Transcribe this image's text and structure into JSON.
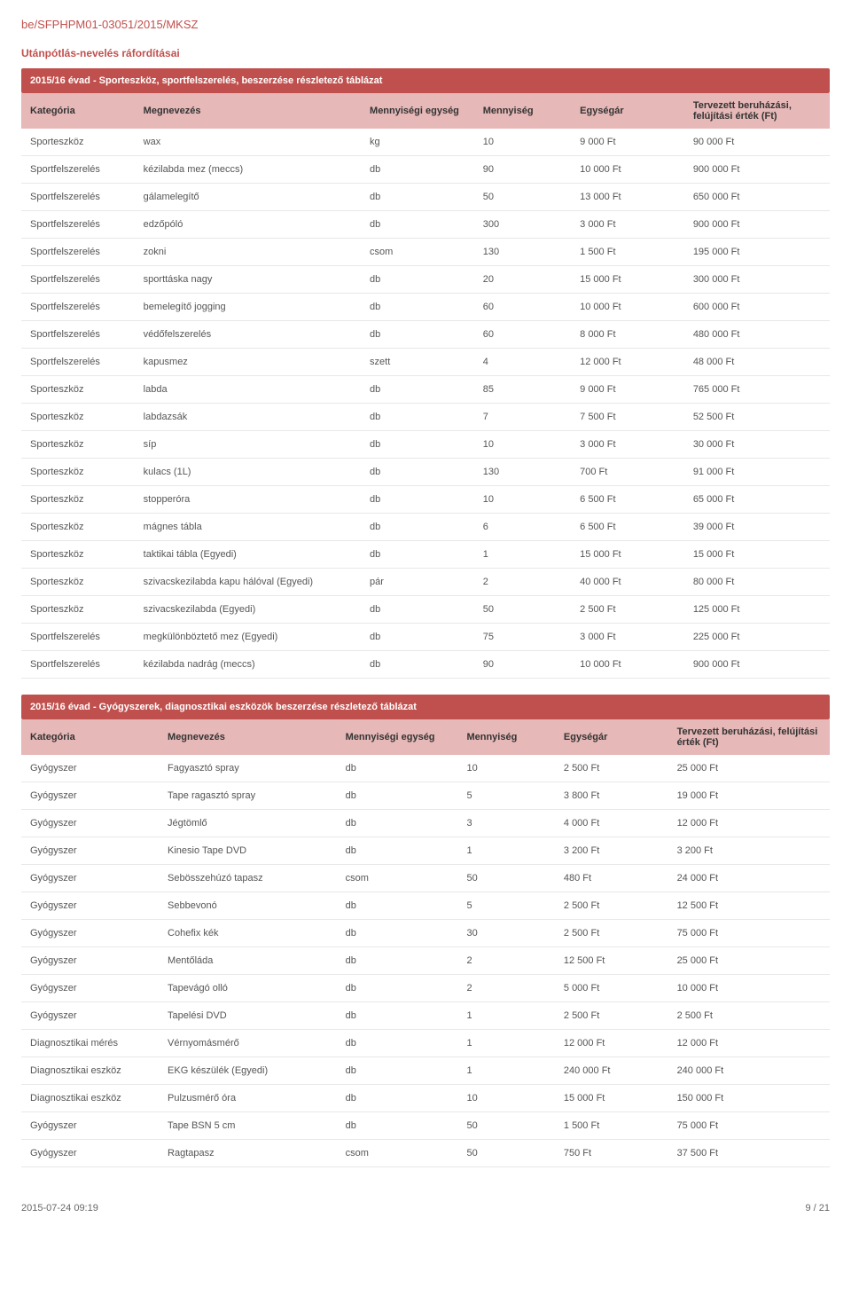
{
  "doc_id": "be/SFPHPM01-03051/2015/MKSZ",
  "section_title": "Utánpótlás-nevelés ráfordításai",
  "table1": {
    "band": "2015/16 évad - Sporteszköz, sportfelszerelés, beszerzése részletező táblázat",
    "headers": [
      "Kategória",
      "Megnevezés",
      "Mennyiségi egység",
      "Mennyiség",
      "Egységár",
      "Tervezett beruházási, felújítási érték (Ft)"
    ],
    "col_widths": [
      "14%",
      "28%",
      "14%",
      "12%",
      "14%",
      "18%"
    ],
    "rows": [
      [
        "Sporteszköz",
        "wax",
        "kg",
        "10",
        "9 000 Ft",
        "90 000 Ft"
      ],
      [
        "Sportfelszerelés",
        "kézilabda mez (meccs)",
        "db",
        "90",
        "10 000 Ft",
        "900 000 Ft"
      ],
      [
        "Sportfelszerelés",
        "gálamelegítő",
        "db",
        "50",
        "13 000 Ft",
        "650 000 Ft"
      ],
      [
        "Sportfelszerelés",
        "edzőpóló",
        "db",
        "300",
        "3 000 Ft",
        "900 000 Ft"
      ],
      [
        "Sportfelszerelés",
        "zokni",
        "csom",
        "130",
        "1 500 Ft",
        "195 000 Ft"
      ],
      [
        "Sportfelszerelés",
        "sporttáska nagy",
        "db",
        "20",
        "15 000 Ft",
        "300 000 Ft"
      ],
      [
        "Sportfelszerelés",
        "bemelegítő jogging",
        "db",
        "60",
        "10 000 Ft",
        "600 000 Ft"
      ],
      [
        "Sportfelszerelés",
        "védőfelszerelés",
        "db",
        "60",
        "8 000 Ft",
        "480 000 Ft"
      ],
      [
        "Sportfelszerelés",
        "kapusmez",
        "szett",
        "4",
        "12 000 Ft",
        "48 000 Ft"
      ],
      [
        "Sporteszköz",
        "labda",
        "db",
        "85",
        "9 000 Ft",
        "765 000 Ft"
      ],
      [
        "Sporteszköz",
        "labdazsák",
        "db",
        "7",
        "7 500 Ft",
        "52 500 Ft"
      ],
      [
        "Sporteszköz",
        "síp",
        "db",
        "10",
        "3 000 Ft",
        "30 000 Ft"
      ],
      [
        "Sporteszköz",
        "kulacs (1L)",
        "db",
        "130",
        "700 Ft",
        "91 000 Ft"
      ],
      [
        "Sporteszköz",
        "stopperóra",
        "db",
        "10",
        "6 500 Ft",
        "65 000 Ft"
      ],
      [
        "Sporteszköz",
        "mágnes tábla",
        "db",
        "6",
        "6 500 Ft",
        "39 000 Ft"
      ],
      [
        "Sporteszköz",
        "taktikai tábla (Egyedi)",
        "db",
        "1",
        "15 000 Ft",
        "15 000 Ft"
      ],
      [
        "Sporteszköz",
        "szivacskezilabda kapu hálóval (Egyedi)",
        "pár",
        "2",
        "40 000 Ft",
        "80 000 Ft"
      ],
      [
        "Sporteszköz",
        "szivacskezilabda (Egyedi)",
        "db",
        "50",
        "2 500 Ft",
        "125 000 Ft"
      ],
      [
        "Sportfelszerelés",
        "megkülönböztető mez (Egyedi)",
        "db",
        "75",
        "3 000 Ft",
        "225 000 Ft"
      ],
      [
        "Sportfelszerelés",
        "kézilabda nadrág (meccs)",
        "db",
        "90",
        "10 000 Ft",
        "900 000 Ft"
      ]
    ]
  },
  "table2": {
    "band": "2015/16 évad - Gyógyszerek, diagnosztikai eszközök beszerzése részletező táblázat",
    "headers": [
      "Kategória",
      "Megnevezés",
      "Mennyiségi egység",
      "Mennyiség",
      "Egységár",
      "Tervezett beruházási, felújítási érték (Ft)"
    ],
    "col_widths": [
      "17%",
      "22%",
      "15%",
      "12%",
      "14%",
      "20%"
    ],
    "rows": [
      [
        "Gyógyszer",
        "Fagyasztó spray",
        "db",
        "10",
        "2 500 Ft",
        "25 000 Ft"
      ],
      [
        "Gyógyszer",
        "Tape ragasztó spray",
        "db",
        "5",
        "3 800 Ft",
        "19 000 Ft"
      ],
      [
        "Gyógyszer",
        "Jégtömlő",
        "db",
        "3",
        "4 000 Ft",
        "12 000 Ft"
      ],
      [
        "Gyógyszer",
        "Kinesio Tape DVD",
        "db",
        "1",
        "3 200 Ft",
        "3 200 Ft"
      ],
      [
        "Gyógyszer",
        "Sebösszehúzó tapasz",
        "csom",
        "50",
        "480 Ft",
        "24 000 Ft"
      ],
      [
        "Gyógyszer",
        "Sebbevonó",
        "db",
        "5",
        "2 500 Ft",
        "12 500 Ft"
      ],
      [
        "Gyógyszer",
        "Cohefix kék",
        "db",
        "30",
        "2 500 Ft",
        "75 000 Ft"
      ],
      [
        "Gyógyszer",
        "Mentőláda",
        "db",
        "2",
        "12 500 Ft",
        "25 000 Ft"
      ],
      [
        "Gyógyszer",
        "Tapevágó olló",
        "db",
        "2",
        "5 000 Ft",
        "10 000 Ft"
      ],
      [
        "Gyógyszer",
        "Tapelési DVD",
        "db",
        "1",
        "2 500 Ft",
        "2 500 Ft"
      ],
      [
        "Diagnosztikai mérés",
        "Vérnyomásmérő",
        "db",
        "1",
        "12 000 Ft",
        "12 000 Ft"
      ],
      [
        "Diagnosztikai eszköz",
        "EKG készülék (Egyedi)",
        "db",
        "1",
        "240 000 Ft",
        "240 000 Ft"
      ],
      [
        "Diagnosztikai eszköz",
        "Pulzusmérő óra",
        "db",
        "10",
        "15 000 Ft",
        "150 000 Ft"
      ],
      [
        "Gyógyszer",
        "Tape BSN 5 cm",
        "db",
        "50",
        "1 500 Ft",
        "75 000 Ft"
      ],
      [
        "Gyógyszer",
        "Ragtapasz",
        "csom",
        "50",
        "750 Ft",
        "37 500 Ft"
      ]
    ]
  },
  "footer": {
    "left": "2015-07-24 09:19",
    "right": "9 / 21"
  },
  "colors": {
    "brand": "#c0504d",
    "header_bg": "#e6b8b7",
    "row_border": "#e8e8e8",
    "text": "#333333",
    "cell_text": "#555555"
  }
}
